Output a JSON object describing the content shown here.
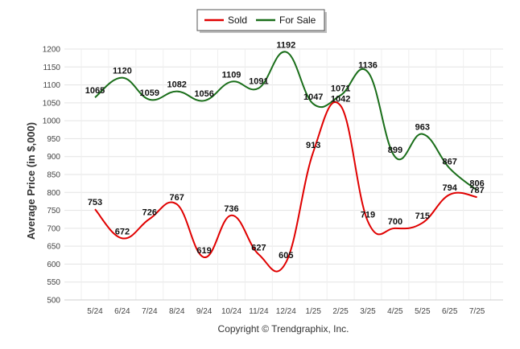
{
  "copyright": "Copyright © Trendgraphix, Inc.",
  "chart_data": {
    "type": "line",
    "title": "",
    "ylabel": "Average Price (in $,000)",
    "xlabel": "",
    "ylim": [
      500,
      1200
    ],
    "yticks": [
      500,
      550,
      600,
      650,
      700,
      750,
      800,
      850,
      900,
      950,
      1000,
      1050,
      1100,
      1150,
      1200
    ],
    "grid": true,
    "legend_position": "top-center",
    "categories": [
      "5/24",
      "6/24",
      "7/24",
      "8/24",
      "9/24",
      "10/24",
      "11/24",
      "12/24",
      "1/25",
      "2/25",
      "3/25",
      "4/25",
      "5/25",
      "6/25",
      "7/25"
    ],
    "series": [
      {
        "name": "Sold",
        "color": "#e00000",
        "values": [
          753,
          672,
          726,
          767,
          619,
          736,
          627,
          605,
          913,
          1042,
          719,
          700,
          715,
          794,
          787
        ]
      },
      {
        "name": "For Sale",
        "color": "#1a6e1a",
        "values": [
          1065,
          1120,
          1059,
          1082,
          1056,
          1109,
          1091,
          1192,
          1047,
          1071,
          1136,
          899,
          963,
          867,
          806
        ]
      }
    ]
  }
}
